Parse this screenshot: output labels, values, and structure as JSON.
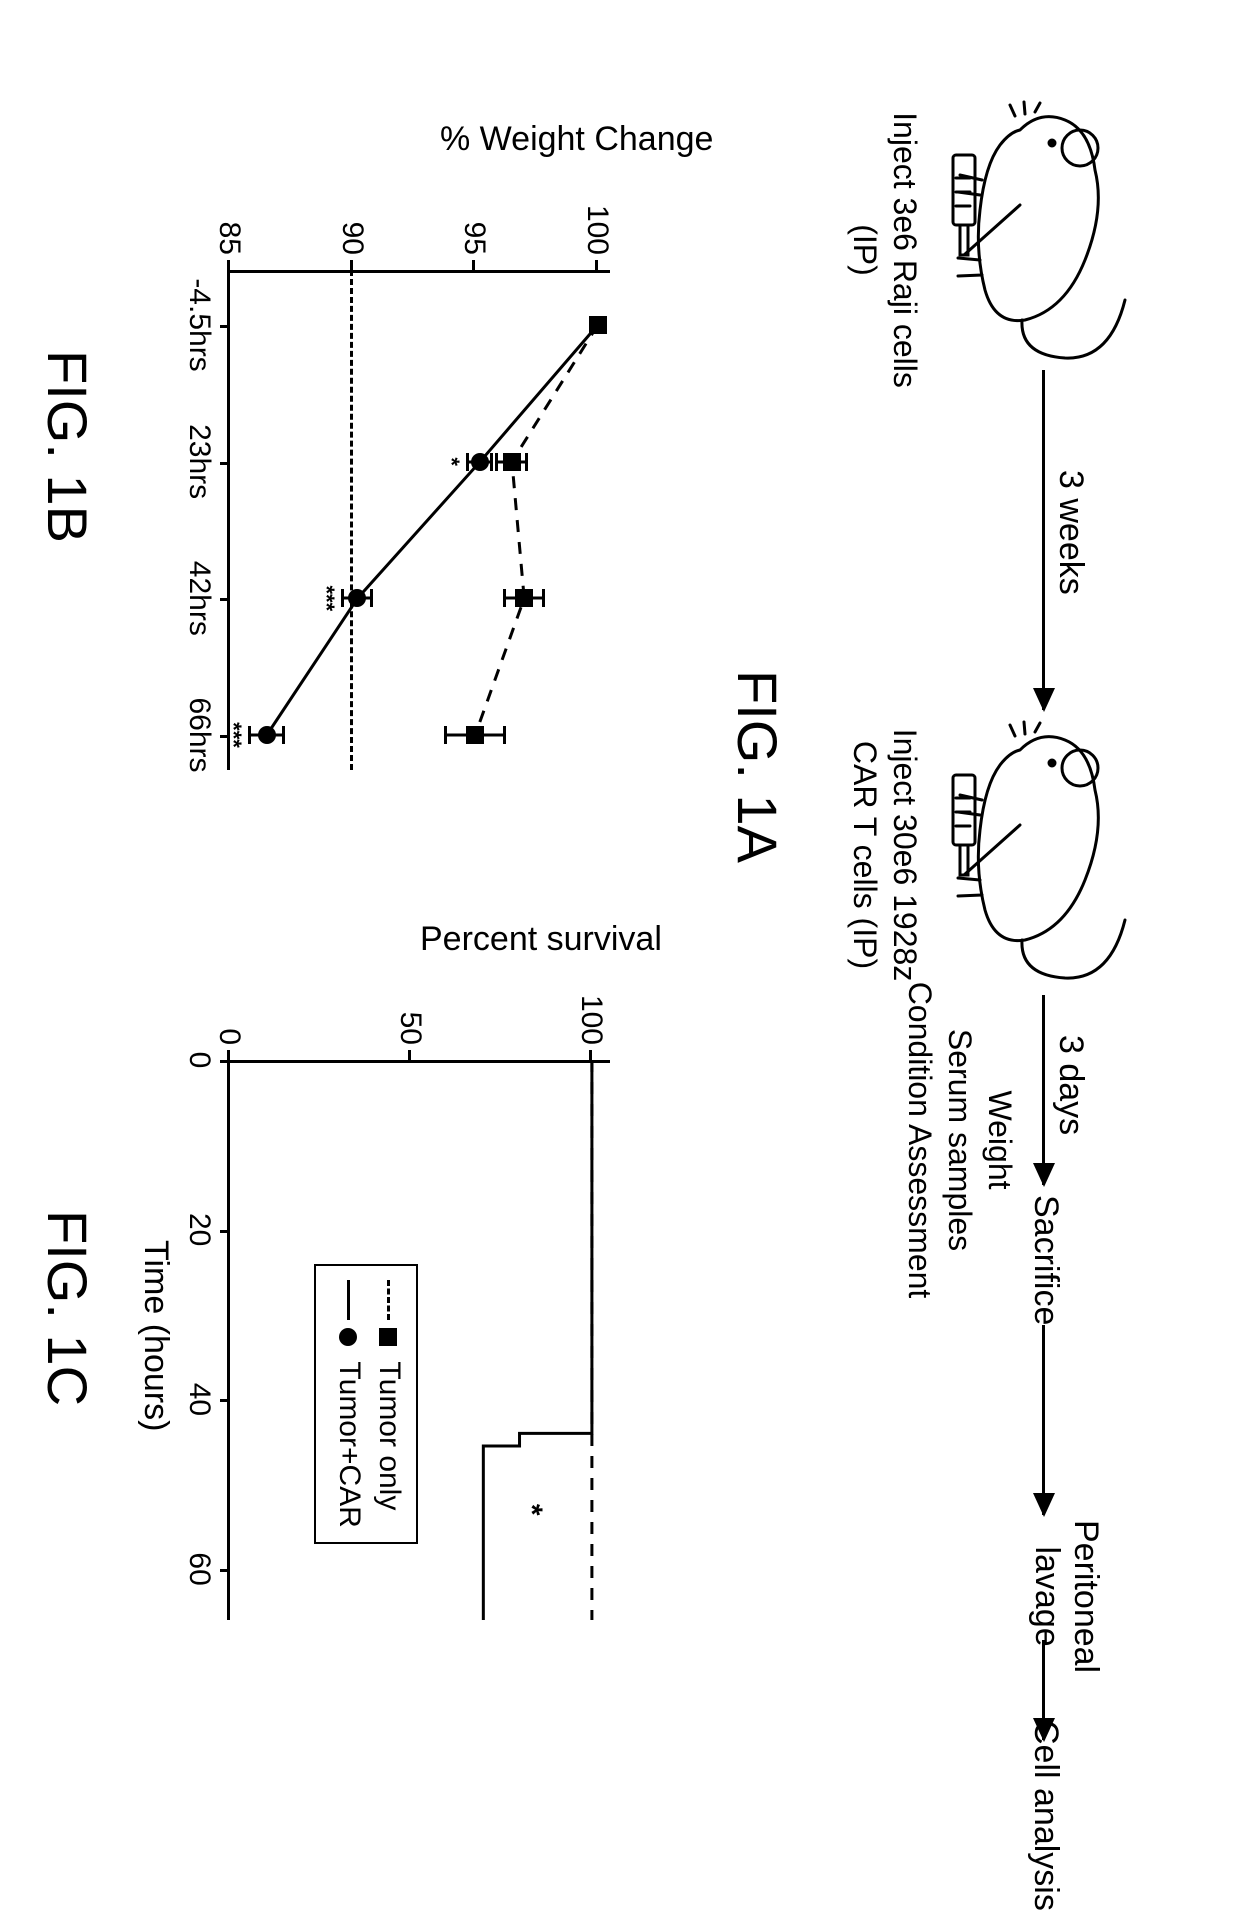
{
  "fig1a": {
    "arrow1_label": "3 weeks",
    "arrow2_label": "3 days",
    "mouse1_label": "Inject 3e6 Raji cells\n(IP)",
    "mouse2_label": "Inject 30e6 1928z\nCAR T cells (IP)",
    "step_sacrifice": "Sacrifice",
    "step_lavage": "Peritoneal\nlavage",
    "step_analysis": "Cell analysis",
    "sub_assess": "Weight\nSerum samples\nCondition Assessment",
    "caption": "FIG. 1A"
  },
  "fig1b": {
    "caption": "FIG. 1B",
    "type": "line",
    "y_title": "% Weight Change",
    "x_ticks": [
      "-4.5hrs",
      "23hrs",
      "42hrs",
      "66hrs"
    ],
    "y_ticks": [
      85,
      90,
      95,
      100
    ],
    "ylim": [
      85,
      100.5
    ],
    "ref_line_y": 90,
    "series": [
      {
        "name": "Tumor only",
        "style": "dashed",
        "marker": "square",
        "color": "#000000",
        "y": [
          100,
          96.5,
          97.0,
          95.0
        ],
        "err": [
          0,
          0.6,
          0.8,
          1.2
        ]
      },
      {
        "name": "Tumor+CAR",
        "style": "solid",
        "marker": "circle",
        "color": "#000000",
        "y": [
          100,
          95.2,
          90.2,
          86.5
        ],
        "err": [
          0,
          0.5,
          0.6,
          0.7
        ],
        "stars": [
          "",
          "*",
          "***",
          "***"
        ]
      }
    ]
  },
  "fig1c": {
    "caption": "FIG. 1C",
    "type": "survival",
    "y_title": "Percent survival",
    "x_title": "Time (hours)",
    "x_ticks": [
      0,
      20,
      40,
      60
    ],
    "y_ticks": [
      0,
      50,
      100
    ],
    "xlim": [
      0,
      66
    ],
    "ylim": [
      0,
      105
    ],
    "star": "*",
    "legend": [
      {
        "style": "dashed",
        "marker": "square",
        "label": "Tumor only"
      },
      {
        "style": "solid",
        "marker": "circle",
        "label": "Tumor+CAR"
      }
    ],
    "series_dashed": [
      [
        0,
        100
      ],
      [
        66,
        100
      ]
    ],
    "series_solid": [
      [
        0,
        100
      ],
      [
        44,
        100
      ],
      [
        44,
        80
      ],
      [
        45.5,
        80
      ],
      [
        45.5,
        70
      ],
      [
        66,
        70
      ]
    ]
  },
  "colors": {
    "foreground": "#000000",
    "background": "#ffffff"
  }
}
